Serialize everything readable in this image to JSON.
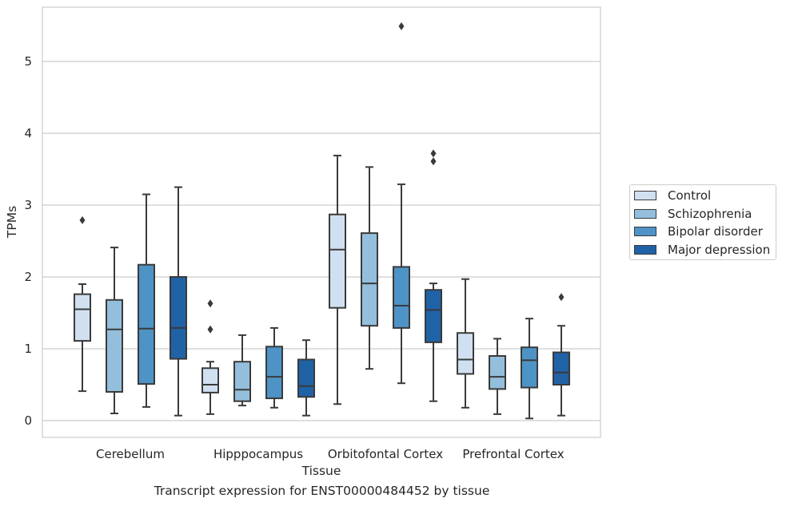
{
  "caption": "Transcript expression for ENST00000484452 by tissue",
  "colors": {
    "control": "#d0e0f1",
    "schizophrenia": "#93bfdc",
    "bipolar": "#4e93c5",
    "depression": "#2062a6"
  },
  "chart_data": {
    "type": "box",
    "xlabel": "Tissue",
    "ylabel": "TPMs",
    "ylim": [
      -0.23,
      5.76
    ],
    "yticks": [
      0,
      1,
      2,
      3,
      4,
      5
    ],
    "grid": "horizontal",
    "legend_position": "right",
    "categories": [
      "Cerebellum",
      "Hipppocampus",
      "Orbitofontal Cortex",
      "Prefrontal Cortex"
    ],
    "series": [
      {
        "name": "Control",
        "boxes": [
          {
            "whisker_low": 0.41,
            "q1": 1.11,
            "median": 1.55,
            "q3": 1.76,
            "whisker_high": 1.9,
            "outliers": [
              2.79
            ]
          },
          {
            "whisker_low": 0.09,
            "q1": 0.39,
            "median": 0.5,
            "q3": 0.73,
            "whisker_high": 0.82,
            "outliers": [
              1.27,
              1.63
            ]
          },
          {
            "whisker_low": 0.23,
            "q1": 1.57,
            "median": 2.38,
            "q3": 2.87,
            "whisker_high": 3.69,
            "outliers": []
          },
          {
            "whisker_low": 0.18,
            "q1": 0.65,
            "median": 0.85,
            "q3": 1.22,
            "whisker_high": 1.97,
            "outliers": []
          }
        ]
      },
      {
        "name": "Schizophrenia",
        "boxes": [
          {
            "whisker_low": 0.1,
            "q1": 0.4,
            "median": 1.27,
            "q3": 1.68,
            "whisker_high": 2.41,
            "outliers": []
          },
          {
            "whisker_low": 0.21,
            "q1": 0.27,
            "median": 0.43,
            "q3": 0.82,
            "whisker_high": 1.19,
            "outliers": []
          },
          {
            "whisker_low": 0.72,
            "q1": 1.32,
            "median": 1.91,
            "q3": 2.61,
            "whisker_high": 3.53,
            "outliers": []
          },
          {
            "whisker_low": 0.09,
            "q1": 0.44,
            "median": 0.61,
            "q3": 0.9,
            "whisker_high": 1.14,
            "outliers": []
          }
        ]
      },
      {
        "name": "Bipolar disorder",
        "boxes": [
          {
            "whisker_low": 0.19,
            "q1": 0.51,
            "median": 1.28,
            "q3": 2.17,
            "whisker_high": 3.15,
            "outliers": []
          },
          {
            "whisker_low": 0.18,
            "q1": 0.31,
            "median": 0.61,
            "q3": 1.03,
            "whisker_high": 1.29,
            "outliers": []
          },
          {
            "whisker_low": 0.52,
            "q1": 1.29,
            "median": 1.6,
            "q3": 2.14,
            "whisker_high": 3.29,
            "outliers": [
              5.49
            ]
          },
          {
            "whisker_low": 0.03,
            "q1": 0.46,
            "median": 0.84,
            "q3": 1.02,
            "whisker_high": 1.42,
            "outliers": []
          }
        ]
      },
      {
        "name": "Major depression",
        "boxes": [
          {
            "whisker_low": 0.07,
            "q1": 0.86,
            "median": 1.29,
            "q3": 2.0,
            "whisker_high": 3.25,
            "outliers": []
          },
          {
            "whisker_low": 0.07,
            "q1": 0.33,
            "median": 0.48,
            "q3": 0.85,
            "whisker_high": 1.12,
            "outliers": []
          },
          {
            "whisker_low": 0.27,
            "q1": 1.09,
            "median": 1.54,
            "q3": 1.82,
            "whisker_high": 1.91,
            "outliers": [
              3.61,
              3.72
            ]
          },
          {
            "whisker_low": 0.07,
            "q1": 0.5,
            "median": 0.67,
            "q3": 0.95,
            "whisker_high": 1.32,
            "outliers": [
              1.72
            ]
          }
        ]
      }
    ]
  }
}
